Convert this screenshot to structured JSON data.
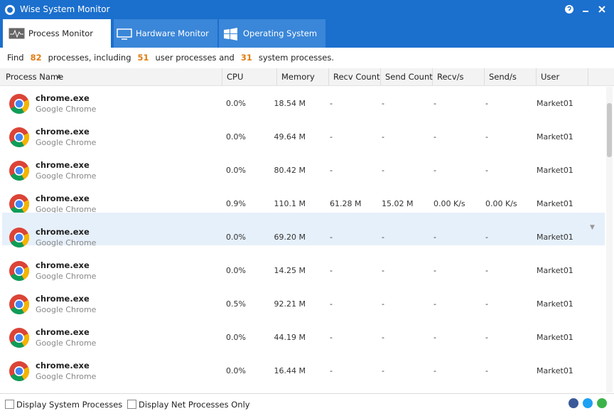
{
  "window": {
    "title": "Wise System Monitor"
  },
  "tabs": [
    "Process Monitor",
    "Hardware Monitor",
    "Operating System"
  ],
  "summary": {
    "parts": [
      "Find",
      "82",
      "processes, including",
      "51",
      "user processes and",
      "31",
      "system processes."
    ]
  },
  "table": {
    "columns": [
      "Process Name",
      "CPU",
      "Memory",
      "Recv Count",
      "Send Count",
      "Recv/s",
      "Send/s",
      "User"
    ],
    "rows": [
      [
        "chrome.exe",
        "Google Chrome",
        "0.0%",
        "18.54 M",
        "-",
        "-",
        "-",
        "-",
        "Market01"
      ],
      [
        "chrome.exe",
        "Google Chrome",
        "0.0%",
        "49.64 M",
        "-",
        "-",
        "-",
        "-",
        "Market01"
      ],
      [
        "chrome.exe",
        "Google Chrome",
        "0.0%",
        "80.42 M",
        "-",
        "-",
        "-",
        "-",
        "Market01"
      ],
      [
        "chrome.exe",
        "Google Chrome",
        "0.9%",
        "110.1 M",
        "61.28 M",
        "15.02 M",
        "0.00 K/s",
        "0.00 K/s",
        "Market01"
      ],
      [
        "chrome.exe",
        "Google Chrome",
        "0.0%",
        "69.20 M",
        "-",
        "-",
        "-",
        "-",
        "Market01"
      ],
      [
        "chrome.exe",
        "Google Chrome",
        "0.0%",
        "14.25 M",
        "-",
        "-",
        "-",
        "-",
        "Market01"
      ],
      [
        "chrome.exe",
        "Google Chrome",
        "0.5%",
        "92.21 M",
        "-",
        "-",
        "-",
        "-",
        "Market01"
      ],
      [
        "chrome.exe",
        "Google Chrome",
        "0.0%",
        "44.19 M",
        "-",
        "-",
        "-",
        "-",
        "Market01"
      ],
      [
        "chrome.exe",
        "Google Chrome",
        "0.0%",
        "16.44 M",
        "-",
        "-",
        "-",
        "-",
        "Market01"
      ]
    ]
  },
  "footer": {
    "options": [
      "Display System Processes",
      "Display Net Processes Only"
    ]
  }
}
